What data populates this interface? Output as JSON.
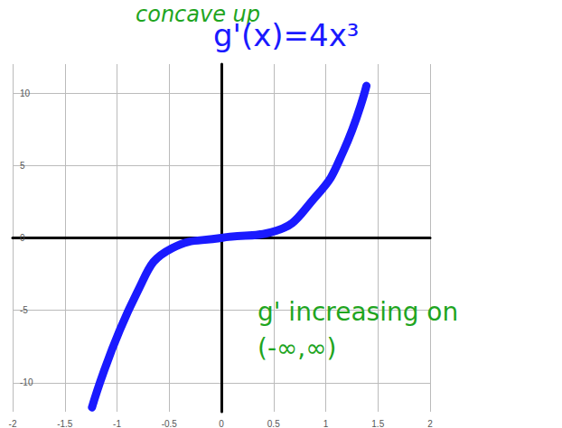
{
  "chart_data": {
    "type": "line",
    "annotations": [
      "concave up",
      "g'(x)=4x³",
      "g' increasing on (-∞,∞)"
    ],
    "x": [
      -1.24,
      -0.81,
      -0.47,
      0,
      0.48,
      0.91,
      1.17,
      1.39
    ],
    "values": [
      -11.7,
      -3.8,
      -0.7,
      0,
      0.4,
      2.9,
      6,
      10.5
    ],
    "color": "#1a1aff",
    "xlim": [
      -2,
      2
    ],
    "xticks": [
      -2,
      -1.5,
      -1,
      -0.5,
      0,
      0.5,
      1,
      1.5,
      2
    ],
    "ylim": [
      -12,
      12
    ],
    "yticks": [
      -10,
      -5,
      0,
      5,
      10
    ],
    "grid": true
  }
}
